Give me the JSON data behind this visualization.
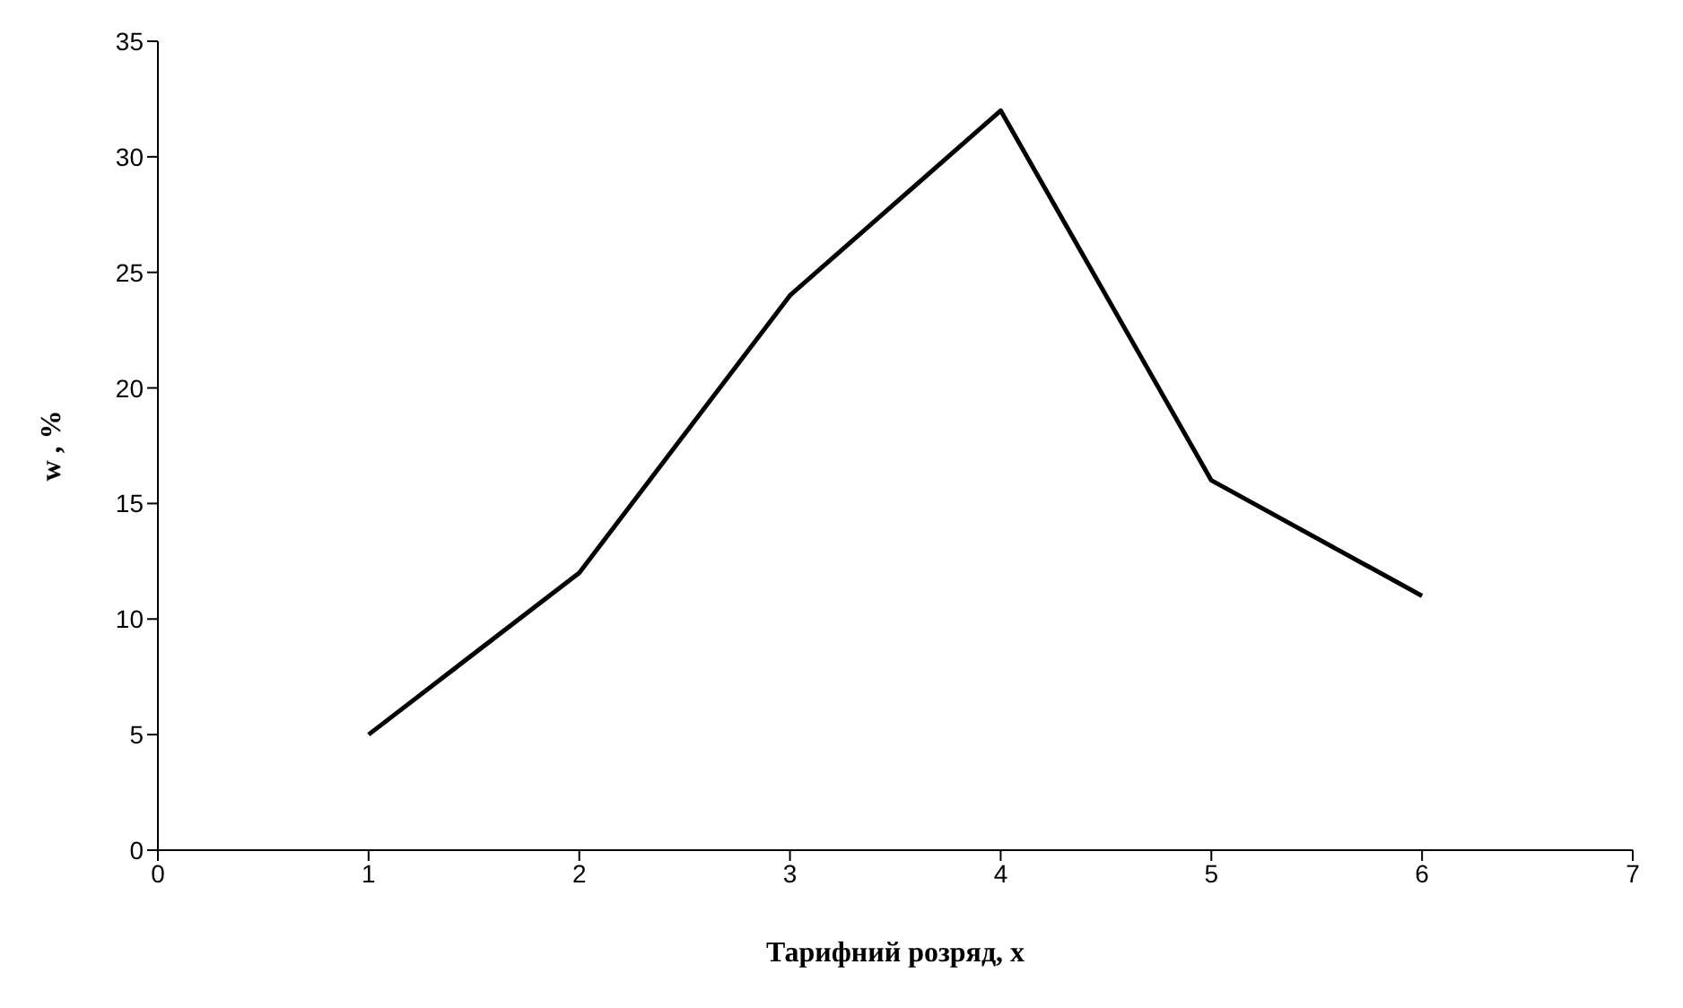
{
  "chart_data": {
    "type": "line",
    "xlabel": "Тарифний розряд, x",
    "ylabel": "w , %",
    "x": [
      1,
      2,
      3,
      4,
      5,
      6
    ],
    "values": [
      5,
      12,
      24,
      32,
      16,
      11
    ],
    "color": "#000000",
    "xlim": [
      0,
      7
    ],
    "xticks": [
      0,
      1,
      2,
      3,
      4,
      5,
      6,
      7
    ],
    "ylim": [
      0,
      35
    ],
    "yticks": [
      0,
      5,
      10,
      15,
      20,
      25,
      30,
      35
    ]
  }
}
